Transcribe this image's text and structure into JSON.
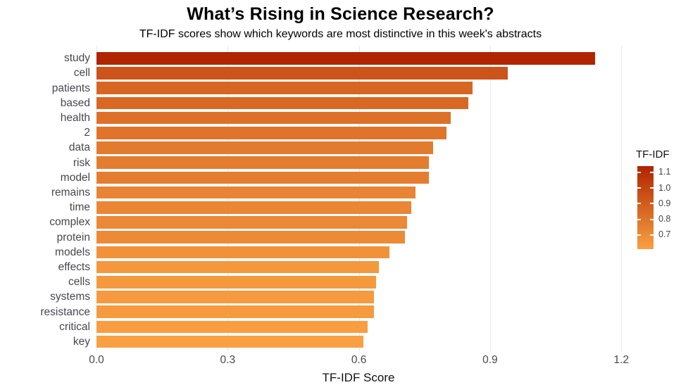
{
  "title": "What’s Rising in Science Research?",
  "subtitle": "TF-IDF scores show which keywords are most distinctive in this week's abstracts",
  "chart_data": {
    "type": "bar",
    "orientation": "horizontal",
    "title": "What’s Rising in Science Research?",
    "subtitle": "TF-IDF scores show which keywords are most distinctive in this week's abstracts",
    "categories": [
      "study",
      "cell",
      "patients",
      "based",
      "health",
      "2",
      "data",
      "risk",
      "model",
      "remains",
      "time",
      "complex",
      "protein",
      "models",
      "effects",
      "cells",
      "systems",
      "resistance",
      "critical",
      "key"
    ],
    "values": [
      1.14,
      0.94,
      0.86,
      0.85,
      0.81,
      0.8,
      0.77,
      0.76,
      0.76,
      0.73,
      0.72,
      0.71,
      0.705,
      0.67,
      0.645,
      0.64,
      0.635,
      0.635,
      0.62,
      0.61
    ],
    "xlabel": "TF-IDF Score",
    "ylabel": "",
    "xlim": [
      0,
      1.29
    ],
    "x_ticks": [
      {
        "value": 0.0,
        "label": "0.0"
      },
      {
        "value": 0.3,
        "label": "0.3"
      },
      {
        "value": 0.6,
        "label": "0.6"
      },
      {
        "value": 0.9,
        "label": "0.9"
      },
      {
        "value": 1.2,
        "label": "1.2"
      }
    ],
    "grid": "vertical-major-only",
    "background": "#ffffff",
    "gridline_color": "#e7e7e7",
    "color_scale": {
      "name": "TF-IDF",
      "low_value": 0.61,
      "high_value": 1.14,
      "low_color": "#F9A042",
      "high_color": "#B02400"
    },
    "legend": {
      "title": "TF-IDF",
      "position": "right",
      "ticks": [
        {
          "value": 1.1,
          "label": "1.1"
        },
        {
          "value": 1.0,
          "label": "1.0"
        },
        {
          "value": 0.9,
          "label": "0.9"
        },
        {
          "value": 0.8,
          "label": "0.8"
        },
        {
          "value": 0.7,
          "label": "0.7"
        }
      ]
    }
  },
  "colors": {
    "axis_text": "#47474f",
    "tick_text": "#4a4a4a",
    "title_text": "#000000",
    "gridline": "#e7e7e7"
  }
}
